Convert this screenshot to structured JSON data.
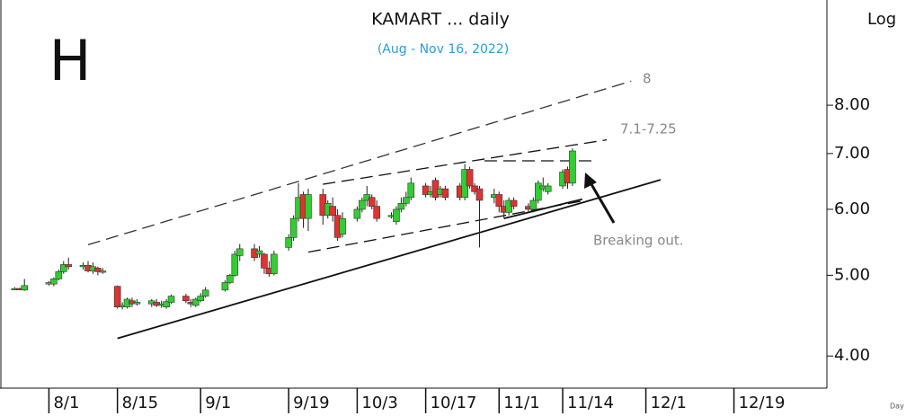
{
  "chart_data": {
    "type": "candlestick",
    "title": "KAMART ... daily",
    "subtitle": "(Aug - Nov 16, 2022)",
    "pattern_label": "H",
    "scale_label": "Log",
    "x_axis_note": "Day",
    "log_scale": true,
    "up_color": "#33cc33",
    "down_color": "#dd3333",
    "xlim": [
      "2022-07-22",
      "2023-01-07"
    ],
    "xticks": [
      {
        "value": "2022-08-01",
        "label": "8/1"
      },
      {
        "value": "2022-08-15",
        "label": "8/15"
      },
      {
        "value": "2022-09-01",
        "label": "9/1"
      },
      {
        "value": "2022-09-19",
        "label": "9/19"
      },
      {
        "value": "2022-10-03",
        "label": "10/3"
      },
      {
        "value": "2022-10-17",
        "label": "10/17"
      },
      {
        "value": "2022-11-01",
        "label": "11/1"
      },
      {
        "value": "2022-11-14",
        "label": "11/14"
      },
      {
        "value": "2022-12-01",
        "label": "12/1"
      },
      {
        "value": "2022-12-19",
        "label": "12/19"
      }
    ],
    "ylim": [
      3.66,
      10.7
    ],
    "yticks": [
      {
        "value": 4,
        "label": "4.00"
      },
      {
        "value": 5,
        "label": "5.00"
      },
      {
        "value": 6,
        "label": "6.00"
      },
      {
        "value": 7,
        "label": "7.00"
      },
      {
        "value": 8,
        "label": "8.00"
      }
    ],
    "x": [
      "2022-07-25",
      "2022-07-26",
      "2022-07-27",
      "2022-08-01",
      "2022-08-02",
      "2022-08-03",
      "2022-08-04",
      "2022-08-05",
      "2022-08-08",
      "2022-08-09",
      "2022-08-10",
      "2022-08-11",
      "2022-08-12",
      "2022-08-15",
      "2022-08-16",
      "2022-08-17",
      "2022-08-18",
      "2022-08-19",
      "2022-08-22",
      "2022-08-23",
      "2022-08-24",
      "2022-08-25",
      "2022-08-26",
      "2022-08-29",
      "2022-08-30",
      "2022-08-31",
      "2022-09-01",
      "2022-09-02",
      "2022-09-06",
      "2022-09-07",
      "2022-09-08",
      "2022-09-09",
      "2022-09-12",
      "2022-09-13",
      "2022-09-14",
      "2022-09-15",
      "2022-09-16",
      "2022-09-19",
      "2022-09-20",
      "2022-09-21",
      "2022-09-22",
      "2022-09-23",
      "2022-09-26",
      "2022-09-27",
      "2022-09-28",
      "2022-09-29",
      "2022-09-30",
      "2022-10-03",
      "2022-10-04",
      "2022-10-05",
      "2022-10-06",
      "2022-10-07",
      "2022-10-10",
      "2022-10-11",
      "2022-10-12",
      "2022-10-13",
      "2022-10-14",
      "2022-10-17",
      "2022-10-18",
      "2022-10-19",
      "2022-10-20",
      "2022-10-21",
      "2022-10-24",
      "2022-10-25",
      "2022-10-26",
      "2022-10-27",
      "2022-10-28",
      "2022-10-31",
      "2022-11-01",
      "2022-11-02",
      "2022-11-03",
      "2022-11-04",
      "2022-11-07",
      "2022-11-08",
      "2022-11-09",
      "2022-11-10",
      "2022-11-11",
      "2022-11-14",
      "2022-11-15",
      "2022-11-16"
    ],
    "open": [
      4.82,
      4.82,
      4.8,
      4.88,
      4.88,
      4.95,
      5.05,
      5.15,
      5.12,
      5.14,
      5.06,
      5.1,
      5.05,
      4.85,
      4.58,
      4.58,
      4.66,
      4.62,
      4.62,
      4.64,
      4.6,
      4.58,
      4.64,
      4.72,
      4.64,
      4.6,
      4.66,
      4.72,
      4.8,
      4.9,
      5.0,
      5.28,
      5.38,
      5.3,
      5.3,
      5.1,
      5.02,
      5.4,
      5.55,
      5.85,
      6.25,
      5.85,
      6.25,
      5.9,
      6.05,
      5.9,
      5.6,
      5.85,
      6.0,
      6.15,
      6.2,
      6.05,
      5.88,
      5.8,
      6.0,
      6.1,
      6.2,
      6.4,
      6.25,
      6.5,
      6.25,
      6.35,
      6.4,
      6.2,
      6.7,
      6.4,
      6.35,
      6.2,
      6.25,
      6.05,
      5.95,
      6.15,
      6.05,
      6.0,
      6.15,
      6.35,
      6.3,
      6.4,
      6.7,
      6.45
    ],
    "high": [
      4.84,
      4.83,
      4.95,
      4.92,
      4.97,
      5.08,
      5.2,
      5.25,
      5.18,
      5.2,
      5.18,
      5.12,
      5.1,
      4.86,
      4.64,
      4.7,
      4.7,
      4.68,
      4.68,
      4.68,
      4.66,
      4.68,
      4.74,
      4.75,
      4.68,
      4.7,
      4.76,
      4.84,
      4.93,
      5.02,
      5.35,
      5.45,
      5.45,
      5.42,
      5.32,
      5.2,
      5.35,
      5.6,
      5.9,
      6.45,
      6.3,
      6.35,
      6.35,
      6.15,
      6.2,
      6.0,
      5.95,
      6.05,
      6.2,
      6.4,
      6.25,
      6.15,
      5.95,
      6.05,
      6.2,
      6.3,
      6.55,
      6.45,
      6.4,
      6.55,
      6.4,
      6.4,
      6.45,
      6.8,
      6.75,
      6.45,
      6.4,
      6.35,
      6.3,
      6.15,
      6.2,
      6.2,
      6.1,
      6.2,
      6.5,
      6.55,
      6.45,
      6.7,
      6.75,
      7.1
    ],
    "low": [
      4.8,
      4.8,
      4.79,
      4.86,
      4.85,
      4.93,
      5.02,
      5.08,
      5.08,
      5.04,
      5.02,
      5.0,
      5.02,
      4.56,
      4.55,
      4.56,
      4.58,
      4.6,
      4.58,
      4.58,
      4.57,
      4.56,
      4.62,
      4.63,
      4.58,
      4.58,
      4.64,
      4.7,
      4.78,
      4.88,
      4.98,
      5.2,
      5.2,
      5.25,
      5.02,
      4.98,
      5.0,
      5.35,
      5.5,
      5.8,
      5.7,
      5.65,
      5.75,
      5.85,
      5.8,
      5.5,
      5.55,
      5.8,
      5.95,
      6.05,
      6.0,
      5.8,
      5.85,
      5.75,
      5.95,
      6.05,
      6.15,
      6.2,
      6.2,
      6.15,
      6.2,
      6.15,
      6.15,
      6.15,
      6.35,
      6.25,
      5.4,
      6.1,
      5.95,
      5.85,
      5.9,
      6.0,
      5.95,
      5.95,
      6.1,
      6.3,
      6.25,
      6.35,
      6.35,
      6.4
    ],
    "close": [
      4.82,
      4.81,
      4.86,
      4.9,
      4.95,
      5.05,
      5.15,
      5.12,
      5.14,
      5.06,
      5.12,
      5.05,
      5.06,
      4.58,
      4.6,
      4.68,
      4.62,
      4.64,
      4.66,
      4.6,
      4.62,
      4.65,
      4.72,
      4.66,
      4.62,
      4.68,
      4.72,
      4.8,
      4.9,
      5.0,
      5.3,
      5.38,
      5.25,
      5.35,
      5.1,
      5.02,
      5.3,
      5.55,
      5.85,
      6.2,
      5.85,
      6.25,
      5.9,
      6.1,
      5.9,
      5.55,
      5.85,
      6.0,
      6.15,
      6.25,
      6.05,
      5.85,
      5.9,
      6.0,
      6.1,
      6.2,
      6.45,
      6.25,
      6.3,
      6.2,
      6.35,
      6.2,
      6.2,
      6.7,
      6.4,
      6.3,
      6.15,
      6.25,
      6.05,
      5.95,
      6.15,
      6.05,
      6.0,
      6.15,
      6.45,
      6.4,
      6.4,
      6.65,
      6.45,
      7.05
    ],
    "trendlines": [
      {
        "x": [
          "2022-08-09",
          "2022-11-28"
        ],
        "y": [
          5.44,
          8.55
        ],
        "style": "dashed",
        "color": "#333333"
      },
      {
        "x": [
          "2022-08-15",
          "2022-12-04"
        ],
        "y": [
          4.2,
          6.51
        ],
        "style": "solid",
        "color": "#111111"
      },
      {
        "x": [
          "2022-09-23",
          "2022-11-18"
        ],
        "y": [
          5.33,
          6.14
        ],
        "style": "dashed",
        "color": "#111111"
      },
      {
        "x": [
          "2022-09-26",
          "2022-11-23"
        ],
        "y": [
          6.43,
          7.27
        ],
        "style": "dashed",
        "color": "#111111"
      },
      {
        "x": [
          "2022-10-29",
          "2022-11-21"
        ],
        "y": [
          6.86,
          6.86
        ],
        "style": "dashed",
        "color": "#111111"
      },
      {
        "x": [
          "2022-11-02",
          "2022-11-18"
        ],
        "y": [
          5.85,
          6.17
        ],
        "style": "solid",
        "color": "#111111"
      }
    ],
    "annotations": [
      "8",
      "7.1-7.25",
      "Breaking out."
    ]
  }
}
